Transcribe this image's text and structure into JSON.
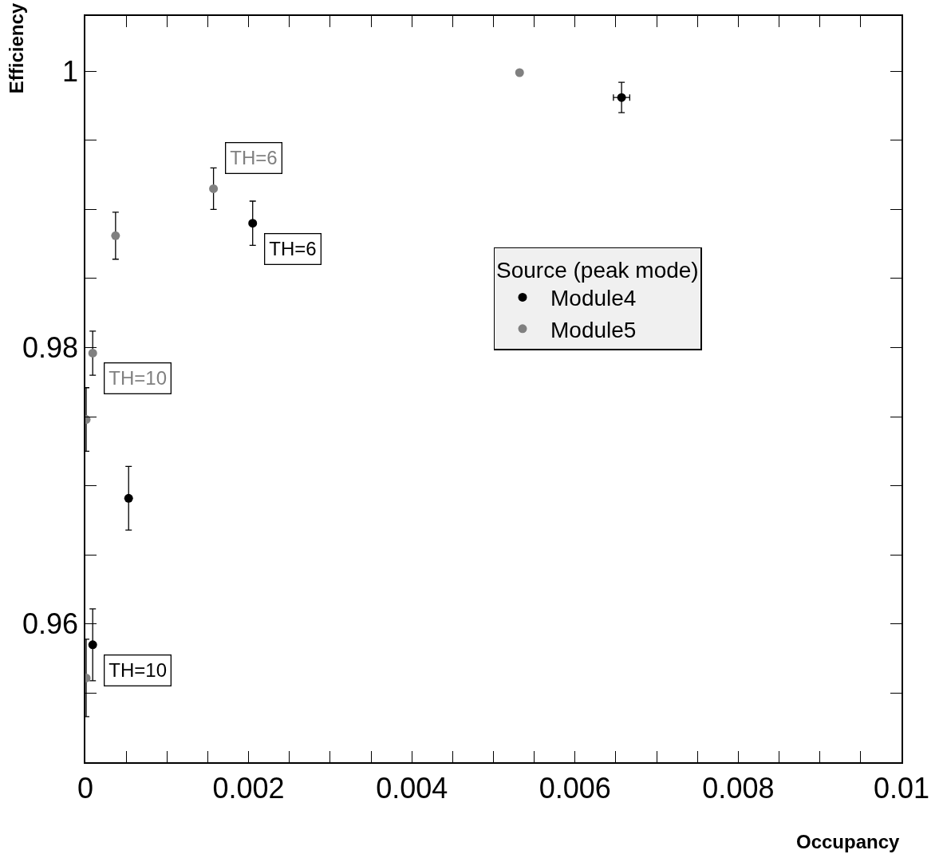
{
  "chart_data": {
    "type": "scatter",
    "xlabel": "Occupancy",
    "ylabel": "Efficiency",
    "legend_title": "Source (peak mode)",
    "xlim": [
      0,
      0.01
    ],
    "xticks": [
      0,
      {
        "value": 0.0005,
        "label": null
      },
      {
        "value": 0.001,
        "label": null
      },
      {
        "value": 0.0015,
        "label": null
      },
      0.002,
      {
        "value": 0.0025,
        "label": null
      },
      {
        "value": 0.003,
        "label": null
      },
      {
        "value": 0.0035,
        "label": null
      },
      0.004,
      {
        "value": 0.0045,
        "label": null
      },
      {
        "value": 0.005,
        "label": null
      },
      {
        "value": 0.0055,
        "label": null
      },
      0.006,
      {
        "value": 0.0065,
        "label": null
      },
      {
        "value": 0.007,
        "label": null
      },
      {
        "value": 0.0075,
        "label": null
      },
      0.008,
      {
        "value": 0.0085,
        "label": null
      },
      {
        "value": 0.009,
        "label": null
      },
      {
        "value": 0.0095,
        "label": null
      },
      0.01
    ],
    "ylim": [
      0.95,
      1.004
    ],
    "yticks": [
      {
        "value": 0.955,
        "label": null
      },
      0.96,
      {
        "value": 0.965,
        "label": null
      },
      {
        "value": 0.97,
        "label": null
      },
      {
        "value": 0.975,
        "label": null
      },
      0.98,
      {
        "value": 0.985,
        "label": null
      },
      {
        "value": 0.99,
        "label": null
      },
      {
        "value": 0.995,
        "label": null
      },
      1
    ],
    "series": [
      {
        "name": "Module4",
        "color": "#000000",
        "x": [
          0.00657,
          0.00205,
          0.00053,
          9e-05
        ],
        "values": [
          0.9981,
          0.989,
          0.9691,
          0.9585
        ],
        "errors": [
          0.0011,
          0.0016,
          0.0023,
          0.0026
        ],
        "xerrors": [
          0.0001,
          null,
          null,
          null
        ]
      },
      {
        "name": "Module5",
        "color": "#808080",
        "x": [
          0.00532,
          0.00157,
          0.00037,
          9e-05,
          1e-05,
          1e-05
        ],
        "values": [
          0.9999,
          0.9915,
          0.9881,
          0.9796,
          0.9748,
          0.9561
        ],
        "errors": [
          null,
          0.0015,
          0.0017,
          0.0016,
          0.0023,
          0.0028
        ]
      }
    ],
    "annotations": [
      {
        "text": "TH=6",
        "x": 0.00157,
        "y": 0.9915
      },
      {
        "text": "TH=6",
        "x": 0.00205,
        "y": 0.989
      },
      {
        "text": "TH=10",
        "x": 9e-05,
        "y": 0.9796
      },
      {
        "text": "TH=10",
        "x": 9e-05,
        "y": 0.9585
      }
    ],
    "legend": "right",
    "grid": false,
    "marker": "circle"
  }
}
